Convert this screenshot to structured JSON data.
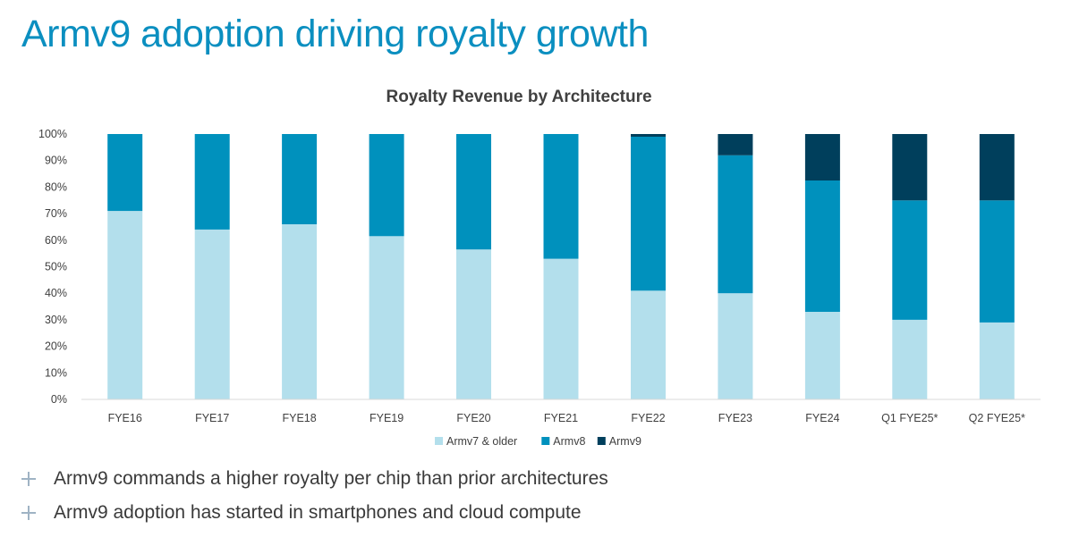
{
  "slide": {
    "title": "Armv9 adoption driving royalty growth",
    "bullets": [
      "Armv9 commands a higher royalty per chip than prior architectures",
      "Armv9 adoption has started in smartphones and cloud compute"
    ],
    "bullet_icon": "plus-icon"
  },
  "colors": {
    "title": "#0b8fc0",
    "armv7": "#b3dfec",
    "armv8": "#0091bd",
    "armv9": "#003f5c",
    "text": "#3a3a3a",
    "axis": "#d9d9d9"
  },
  "chart_data": {
    "type": "bar",
    "stacked": true,
    "title": "Royalty Revenue by Architecture",
    "xlabel": "",
    "ylabel": "",
    "ylim": [
      0,
      100
    ],
    "y_ticks": [
      "0%",
      "10%",
      "20%",
      "30%",
      "40%",
      "50%",
      "60%",
      "70%",
      "80%",
      "90%",
      "100%"
    ],
    "grid": false,
    "legend_position": "bottom",
    "categories": [
      "FYE16",
      "FYE17",
      "FYE18",
      "FYE19",
      "FYE20",
      "FYE21",
      "FYE22",
      "FYE23",
      "FYE24",
      "Q1 FYE25*",
      "Q2 FYE25*"
    ],
    "series": [
      {
        "name": "Armv7 & older",
        "color": "#b3dfec",
        "values": [
          71,
          64,
          66,
          61.5,
          56.5,
          53,
          41,
          40,
          33,
          30,
          29
        ]
      },
      {
        "name": "Armv8",
        "color": "#0091bd",
        "values": [
          29,
          36,
          34,
          38.5,
          43.5,
          47,
          58,
          52,
          49.5,
          45,
          46
        ]
      },
      {
        "name": "Armv9",
        "color": "#003f5c",
        "values": [
          0,
          0,
          0,
          0,
          0,
          0,
          1,
          8,
          17.5,
          25,
          25
        ]
      }
    ]
  }
}
